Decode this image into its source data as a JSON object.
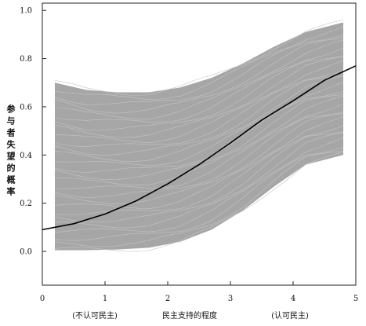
{
  "chart_data": {
    "type": "line",
    "title": "",
    "xlabel": "民主支持的程度",
    "ylabel": "参与者失望的概率",
    "xlim": [
      0,
      5
    ],
    "ylim": [
      -0.14,
      1.03
    ],
    "x_ticks": [
      0,
      1,
      2,
      3,
      4,
      5
    ],
    "y_ticks": [
      0.0,
      0.2,
      0.4,
      0.6,
      0.8,
      1.0
    ],
    "x_tick_labels": [
      "0",
      "1",
      "2",
      "3",
      "4",
      "5"
    ],
    "y_tick_labels": [
      "0.0",
      "0.2",
      "0.4",
      "0.6",
      "0.8",
      "1.0"
    ],
    "x_annotations": [
      {
        "x": 1,
        "text": "(不认可民主)"
      },
      {
        "x": 4,
        "text": "(认可民主)"
      }
    ],
    "grid": false,
    "series": [
      {
        "role": "mean-curve",
        "color": "#000000",
        "x": [
          0.0,
          0.5,
          1.0,
          1.5,
          2.0,
          2.5,
          3.0,
          3.5,
          4.0,
          4.5,
          5.0
        ],
        "y": [
          0.09,
          0.115,
          0.155,
          0.21,
          0.28,
          0.36,
          0.45,
          0.545,
          0.625,
          0.71,
          0.77
        ]
      },
      {
        "role": "simulation-band",
        "color": "#a6a6a6",
        "x": [
          0.2,
          0.7,
          1.2,
          1.7,
          2.2,
          2.7,
          3.2,
          3.7,
          4.2,
          4.8
        ],
        "upper": [
          0.7,
          0.67,
          0.66,
          0.66,
          0.68,
          0.72,
          0.78,
          0.85,
          0.91,
          0.95
        ],
        "lower": [
          0.005,
          0.005,
          0.008,
          0.015,
          0.04,
          0.09,
          0.17,
          0.27,
          0.36,
          0.4
        ]
      }
    ]
  }
}
